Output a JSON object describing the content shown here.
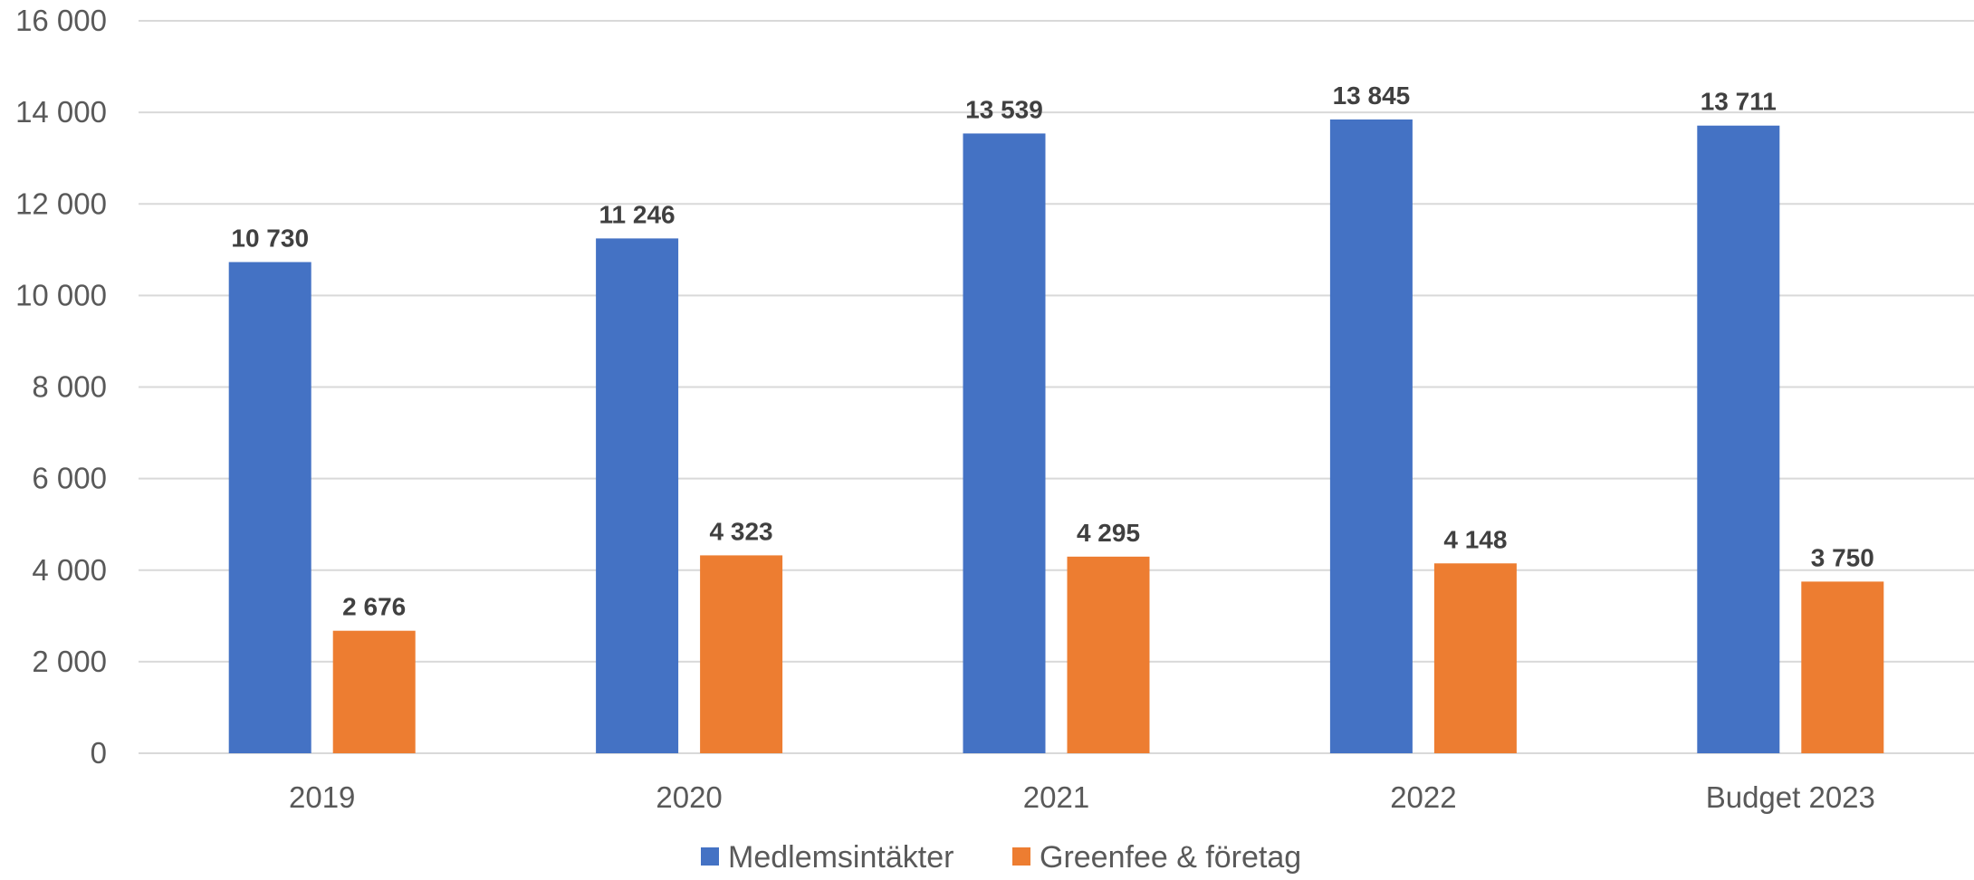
{
  "chart_data": {
    "type": "bar",
    "title": "",
    "xlabel": "",
    "ylabel": "",
    "categories": [
      "2019",
      "2020",
      "2021",
      "2022",
      "Budget 2023"
    ],
    "series": [
      {
        "name": "Medlemsintäkter",
        "color": "#4472C4",
        "values": [
          10730,
          11246,
          13539,
          13845,
          13711
        ],
        "labels": [
          "10 730",
          "11 246",
          "13 539",
          "13 845",
          "13 711"
        ]
      },
      {
        "name": "Greenfee & företag",
        "color": "#ED7D31",
        "values": [
          2676,
          4323,
          4295,
          4148,
          3750
        ],
        "labels": [
          "2 676",
          "4 323",
          "4 295",
          "4 148",
          "3 750"
        ]
      }
    ],
    "ylim": [
      0,
      16000
    ],
    "yticks": [
      0,
      2000,
      4000,
      6000,
      8000,
      10000,
      12000,
      14000,
      16000
    ],
    "ytick_labels": [
      "0",
      "2 000",
      "4 000",
      "6 000",
      "8 000",
      "10 000",
      "12 000",
      "14 000",
      "16 000"
    ],
    "grid": true,
    "legend_position": "bottom"
  }
}
